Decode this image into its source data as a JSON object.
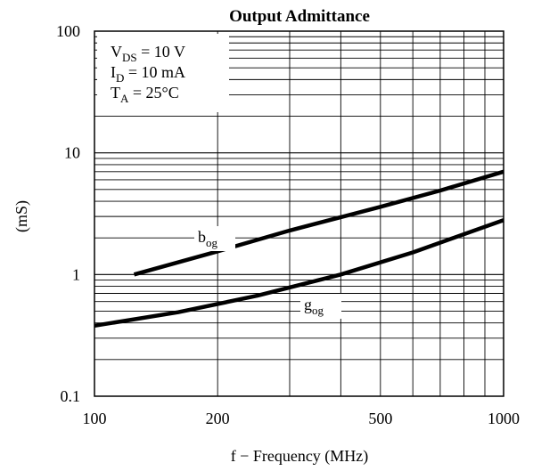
{
  "chart_data": {
    "type": "line",
    "title": "Output Admittance",
    "xlabel": "f − Frequency (MHz)",
    "ylabel": "(mS)",
    "x_scale": "log",
    "y_scale": "log",
    "xlim": [
      100,
      1000
    ],
    "ylim": [
      0.1,
      100
    ],
    "grid": true,
    "x_tick_labels": [
      {
        "value": 100,
        "label": "100"
      },
      {
        "value": 200,
        "label": "200"
      },
      {
        "value": 500,
        "label": "500"
      },
      {
        "value": 1000,
        "label": "1000"
      }
    ],
    "y_tick_labels": [
      {
        "value": 0.1,
        "label": "0.1"
      },
      {
        "value": 1,
        "label": "1"
      },
      {
        "value": 10,
        "label": "10"
      },
      {
        "value": 100,
        "label": "100"
      }
    ],
    "conditions": [
      {
        "main": "V",
        "sub": "DS",
        "rest": " = 10 V"
      },
      {
        "main": "I",
        "sub": "D",
        "rest": " = 10 mA"
      },
      {
        "main": "T",
        "sub": "A",
        "rest": " = 25°C"
      }
    ],
    "series": [
      {
        "label_main": "b",
        "label_sub": "og",
        "x": [
          125,
          200,
          300,
          500,
          700,
          1000
        ],
        "y": [
          1.0,
          1.55,
          2.3,
          3.6,
          4.9,
          7.0
        ]
      },
      {
        "label_main": "g",
        "label_sub": "og",
        "x": [
          100,
          160,
          250,
          400,
          600,
          1000
        ],
        "y": [
          0.38,
          0.49,
          0.67,
          1.0,
          1.52,
          2.8
        ]
      }
    ]
  }
}
